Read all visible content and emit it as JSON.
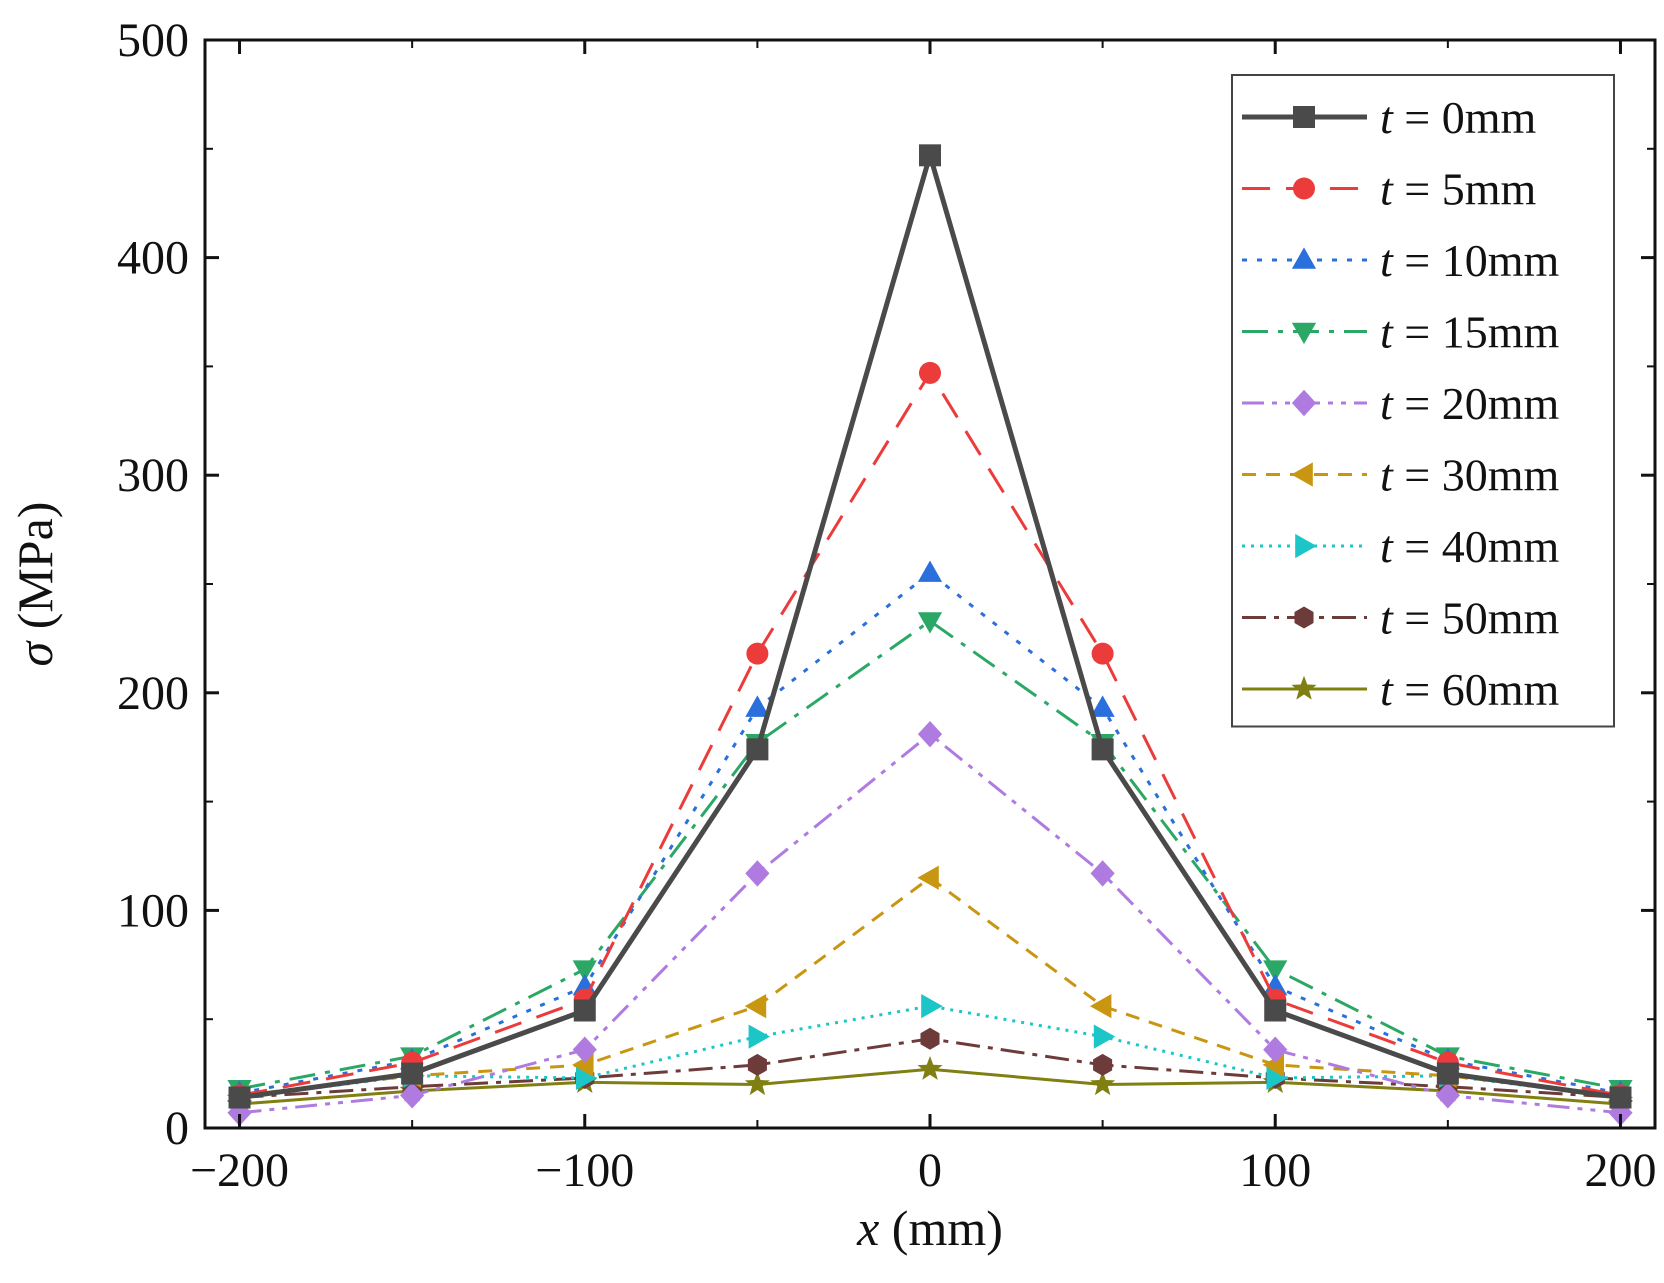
{
  "chart_data": {
    "type": "line",
    "title": "",
    "xlabel_var": "x",
    "xlabel_unit": " (mm)",
    "ylabel_var": "σ",
    "ylabel_unit": " (MPa)",
    "xlim": [
      -210,
      210
    ],
    "ylim": [
      0,
      500
    ],
    "xticks": [
      -200,
      -100,
      0,
      100,
      200
    ],
    "xtick_labels": [
      "−200",
      "−100",
      "0",
      "100",
      "200"
    ],
    "yticks": [
      0,
      100,
      200,
      300,
      400,
      500
    ],
    "ytick_labels": [
      "0",
      "100",
      "200",
      "300",
      "400",
      "500"
    ],
    "grid": false,
    "legend_position": "top-right",
    "x": [
      -200,
      -150,
      -100,
      -50,
      0,
      50,
      100,
      150,
      200
    ],
    "series": [
      {
        "label_var": "t",
        "label_rest": " = 0mm",
        "color": "#4a4a4a",
        "dash": "",
        "width": 5,
        "marker": "square",
        "values": [
          14,
          25,
          54,
          174,
          447,
          174,
          54,
          25,
          14
        ]
      },
      {
        "label_var": "t",
        "label_rest": " = 5mm",
        "color": "#ec3b3b",
        "dash": "28,16",
        "width": 3,
        "marker": "circle",
        "values": [
          15,
          30,
          59,
          218,
          347,
          218,
          59,
          30,
          15
        ]
      },
      {
        "label_var": "t",
        "label_rest": " = 10mm",
        "color": "#2a6fdb",
        "dash": "5,10",
        "width": 3,
        "marker": "triangle-up",
        "values": [
          16,
          31,
          65,
          193,
          255,
          193,
          65,
          31,
          16
        ]
      },
      {
        "label_var": "t",
        "label_rest": " = 15mm",
        "color": "#2ba865",
        "dash": "26,10,5,10",
        "width": 3,
        "marker": "triangle-down",
        "values": [
          18,
          33,
          73,
          177,
          233,
          177,
          73,
          33,
          18
        ]
      },
      {
        "label_var": "t",
        "label_rest": " = 20mm",
        "color": "#b07be0",
        "dash": "22,8,5,8,5,8",
        "width": 3,
        "marker": "diamond",
        "values": [
          7,
          15,
          36,
          117,
          181,
          117,
          36,
          15,
          7
        ]
      },
      {
        "label_var": "t",
        "label_rest": " = 30mm",
        "color": "#c99612",
        "dash": "14,10",
        "width": 3,
        "marker": "triangle-left",
        "values": [
          15,
          24,
          29,
          56,
          115,
          56,
          29,
          24,
          15
        ]
      },
      {
        "label_var": "t",
        "label_rest": " = 40mm",
        "color": "#1cc6c6",
        "dash": "3,6",
        "width": 3,
        "marker": "triangle-right",
        "values": [
          14,
          24,
          23,
          42,
          56,
          42,
          23,
          24,
          14
        ]
      },
      {
        "label_var": "t",
        "label_rest": " = 50mm",
        "color": "#6e3b3b",
        "dash": "24,8,5,8",
        "width": 3,
        "marker": "hexagon",
        "values": [
          14,
          19,
          23,
          29,
          41,
          29,
          23,
          19,
          14
        ]
      },
      {
        "label_var": "t",
        "label_rest": " = 60mm",
        "color": "#7f7f12",
        "dash": "",
        "width": 3,
        "marker": "star",
        "values": [
          11,
          17,
          21,
          20,
          27,
          20,
          21,
          17,
          11
        ]
      }
    ]
  }
}
